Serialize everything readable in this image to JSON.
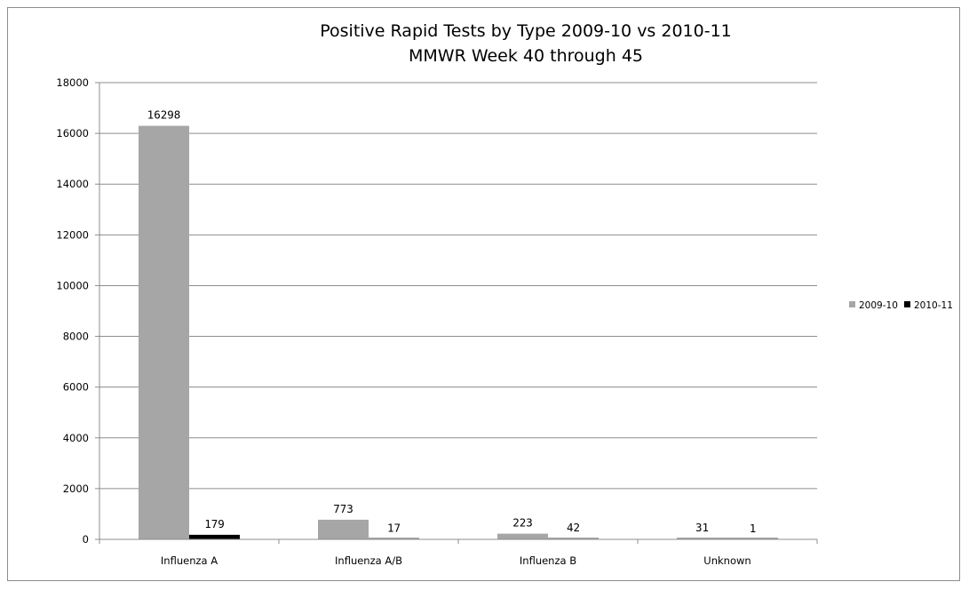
{
  "chart_data": {
    "type": "bar",
    "title_lines": [
      "Positive Rapid Tests by Type 2009-10 vs 2010-11",
      "MMWR Week 40 through 45"
    ],
    "categories": [
      "Influenza A",
      "Influenza A/B",
      "Influenza B",
      "Unknown"
    ],
    "series": [
      {
        "name": "2009-10",
        "values": [
          16298,
          773,
          223,
          31
        ],
        "color": "#a6a6a6"
      },
      {
        "name": "2010-11",
        "values": [
          179,
          17,
          42,
          1
        ],
        "color": "#000000"
      }
    ],
    "ylim": [
      0,
      18000
    ],
    "yticks": [
      0,
      2000,
      4000,
      6000,
      8000,
      10000,
      12000,
      14000,
      16000,
      18000
    ],
    "grid": true,
    "legend_position": "right",
    "xlabel": "",
    "ylabel": ""
  }
}
